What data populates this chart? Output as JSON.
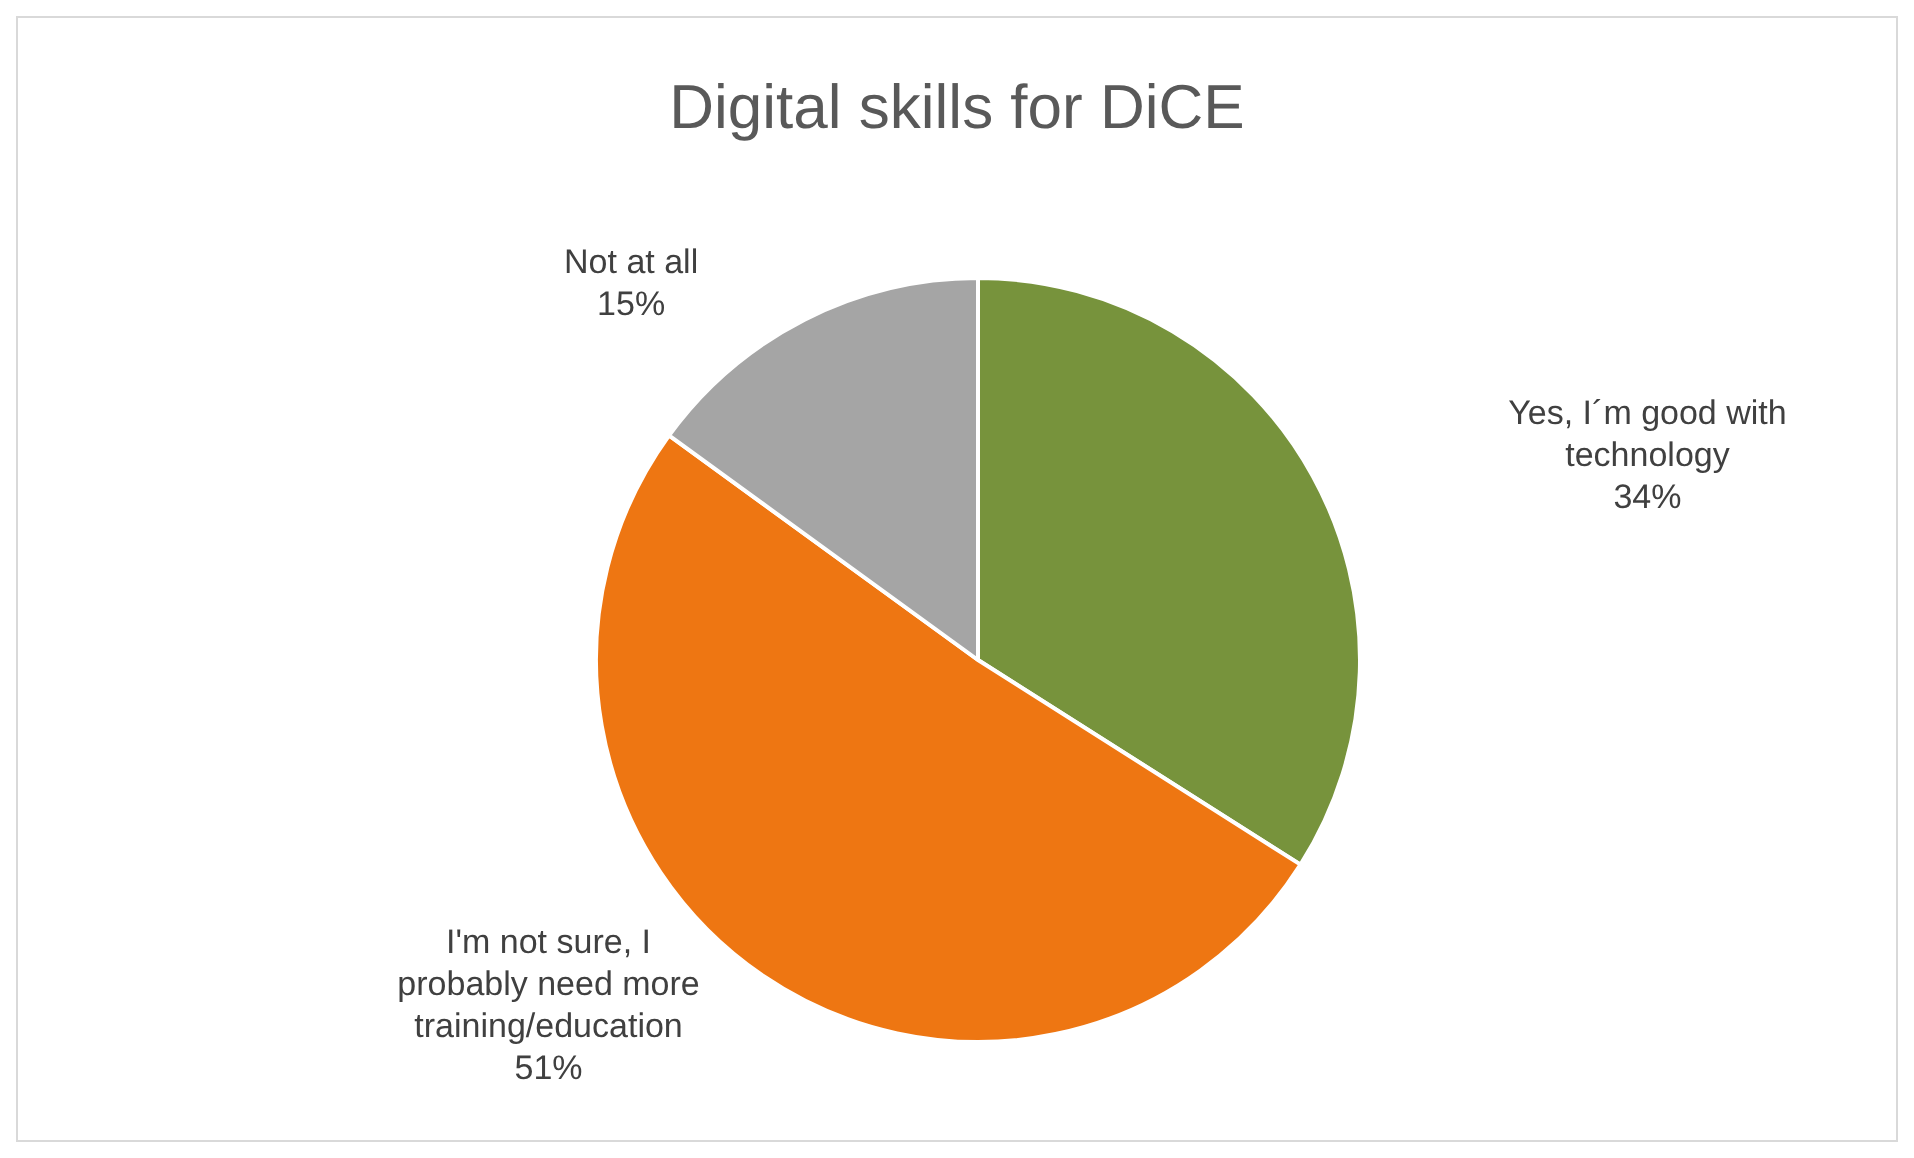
{
  "chart_data": {
    "type": "pie",
    "title": "Digital skills for DiCE",
    "categories": [
      "Yes, I´m good with technology",
      "I'm not sure, I probably need more training/education",
      "Not at all"
    ],
    "values": [
      34,
      51,
      15
    ],
    "colors": [
      "#77933c",
      "#ee7612",
      "#a5a5a5"
    ],
    "value_labels": [
      "34%",
      "51%",
      "15%"
    ],
    "legend": false
  }
}
